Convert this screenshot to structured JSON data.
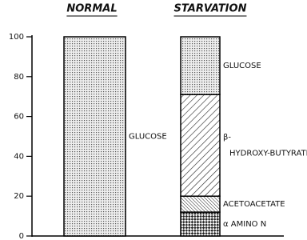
{
  "chart_data": {
    "type": "stacked-bar",
    "categories": [
      "NORMAL",
      "STARVATION"
    ],
    "series": [
      {
        "name": "α AMINO N",
        "values": [
          0,
          12
        ]
      },
      {
        "name": "ACETOACETATE",
        "values": [
          0,
          8
        ]
      },
      {
        "name": "β-HYDROXY-BUTYRATE",
        "values": [
          0,
          51
        ]
      },
      {
        "name": "GLUCOSE",
        "values": [
          100,
          29
        ]
      }
    ],
    "ylim": [
      0,
      100
    ],
    "yticks": [
      0,
      20,
      40,
      60,
      80,
      100
    ]
  }
}
